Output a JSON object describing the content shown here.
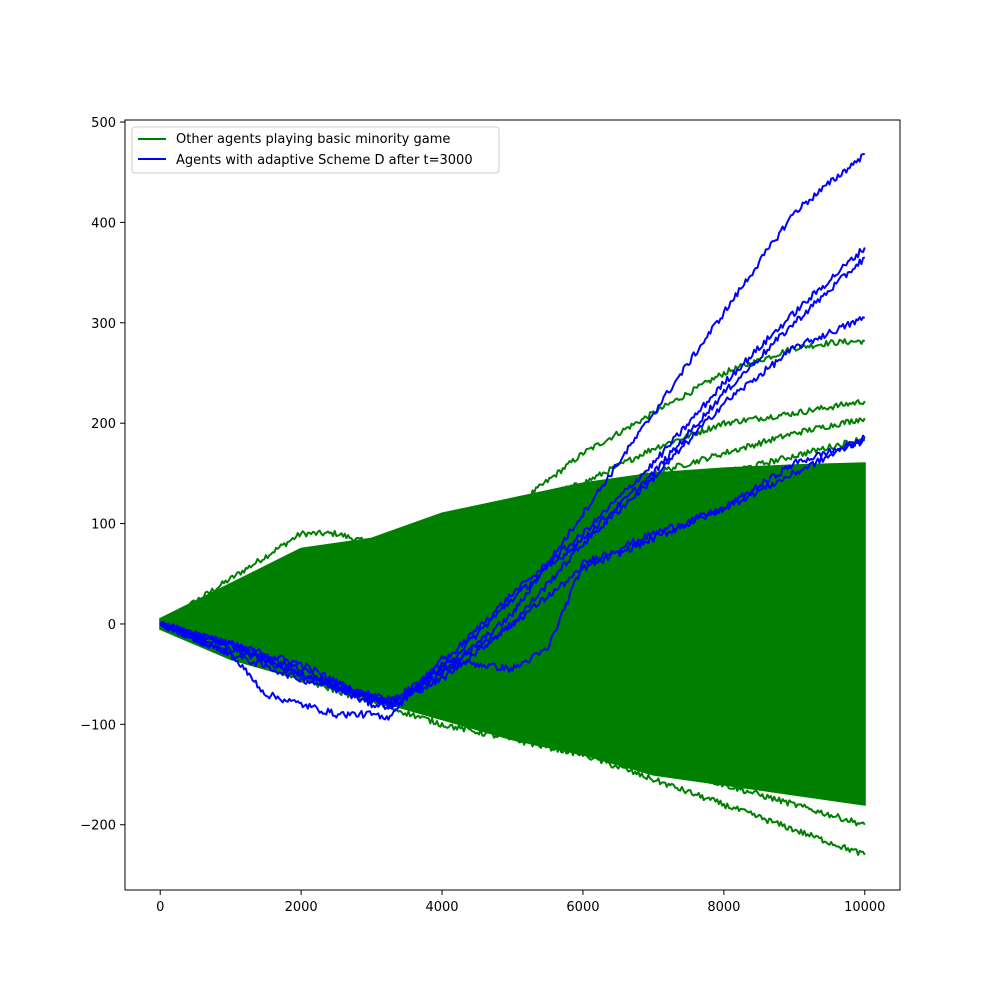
{
  "chart_data": {
    "type": "line",
    "title": "",
    "xlabel": "",
    "ylabel": "",
    "xlim": [
      -500,
      10500
    ],
    "ylim": [
      -265,
      502
    ],
    "xticks": [
      0,
      2000,
      4000,
      6000,
      8000,
      10000
    ],
    "yticks": [
      -200,
      -100,
      0,
      100,
      200,
      300,
      400,
      500
    ],
    "grid": false,
    "legend_position": "upper-left",
    "colors": {
      "green": "#008000",
      "blue": "#0000ff"
    },
    "series": [
      {
        "name": "Other agents playing basic minority game",
        "color": "#008000",
        "envelope": {
          "x": [
            0,
            1000,
            2000,
            3000,
            4000,
            5000,
            6000,
            7000,
            8000,
            9000,
            10000
          ],
          "upper": [
            5,
            40,
            75,
            85,
            110,
            125,
            140,
            150,
            155,
            158,
            160
          ],
          "lower": [
            -5,
            -35,
            -55,
            -75,
            -95,
            -115,
            -130,
            -150,
            -160,
            -170,
            -180
          ]
        },
        "highlighted_paths": [
          {
            "x": [
              0,
              2000,
              2500,
              3500,
              5000,
              6000,
              7000,
              8000,
              9000,
              9500,
              10000
            ],
            "y": [
              0,
              90,
              90,
              70,
              115,
              170,
              210,
              250,
              275,
              280,
              282
            ]
          },
          {
            "x": [
              0,
              2000,
              4000,
              6000,
              7000,
              8000,
              9000,
              10000
            ],
            "y": [
              0,
              50,
              95,
              140,
              175,
              200,
              210,
              222
            ]
          },
          {
            "x": [
              0,
              2000,
              4000,
              6000,
              8000,
              9000,
              10000
            ],
            "y": [
              0,
              50,
              95,
              130,
              170,
              190,
              205
            ]
          },
          {
            "x": [
              0,
              2000,
              4000,
              6000,
              8000,
              10000
            ],
            "y": [
              0,
              45,
              85,
              120,
              150,
              185
            ]
          },
          {
            "x": [
              0,
              2000,
              4000,
              6000,
              8000,
              10000
            ],
            "y": [
              0,
              -50,
              -90,
              -120,
              -160,
              -200
            ]
          },
          {
            "x": [
              0,
              2000,
              4000,
              6000,
              8000,
              10000
            ],
            "y": [
              0,
              -55,
              -100,
              -130,
              -180,
              -230
            ]
          },
          {
            "x": [
              0,
              2000,
              4000,
              6000,
              8000,
              10000
            ],
            "y": [
              0,
              -50,
              -85,
              -115,
              -150,
              -175
            ]
          }
        ]
      },
      {
        "name": "Agents with adaptive Scheme D after t=3000",
        "color": "#0000ff",
        "paths": [
          {
            "x": [
              0,
              1000,
              2000,
              3000,
              3300,
              4000,
              5000,
              6000,
              7000,
              8000,
              9000,
              10000
            ],
            "y": [
              0,
              -20,
              -40,
              -75,
              -80,
              -50,
              10,
              110,
              210,
              310,
              410,
              468
            ]
          },
          {
            "x": [
              0,
              1000,
              2000,
              3000,
              3300,
              4000,
              5000,
              6000,
              7000,
              8000,
              9000,
              10000
            ],
            "y": [
              0,
              -25,
              -50,
              -70,
              -80,
              -40,
              30,
              90,
              160,
              240,
              310,
              375
            ]
          },
          {
            "x": [
              0,
              1000,
              2000,
              3000,
              3300,
              4000,
              5000,
              6000,
              7000,
              8000,
              9000,
              10000
            ],
            "y": [
              0,
              -20,
              -45,
              -75,
              -75,
              -45,
              25,
              85,
              150,
              230,
              300,
              365
            ]
          },
          {
            "x": [
              0,
              1000,
              2000,
              3000,
              3300,
              4000,
              5000,
              6000,
              7000,
              8000,
              9000,
              10000
            ],
            "y": [
              0,
              -30,
              -55,
              -72,
              -78,
              -55,
              0,
              80,
              145,
              220,
              275,
              305
            ]
          },
          {
            "x": [
              0,
              1000,
              2000,
              3000,
              3300,
              4000,
              5000,
              6000,
              7000,
              8000,
              9000,
              10000
            ],
            "y": [
              0,
              -20,
              -50,
              -80,
              -82,
              -45,
              0,
              55,
              85,
              115,
              150,
              185
            ]
          },
          {
            "x": [
              0,
              1000,
              1500,
              2000,
              2500,
              3000,
              3200,
              4000,
              4500,
              5000,
              5500,
              6000,
              7000,
              8000,
              9000,
              10000
            ],
            "y": [
              0,
              -30,
              -70,
              -80,
              -90,
              -90,
              -95,
              -35,
              -40,
              -45,
              -25,
              60,
              90,
              115,
              160,
              183
            ]
          }
        ]
      }
    ]
  }
}
